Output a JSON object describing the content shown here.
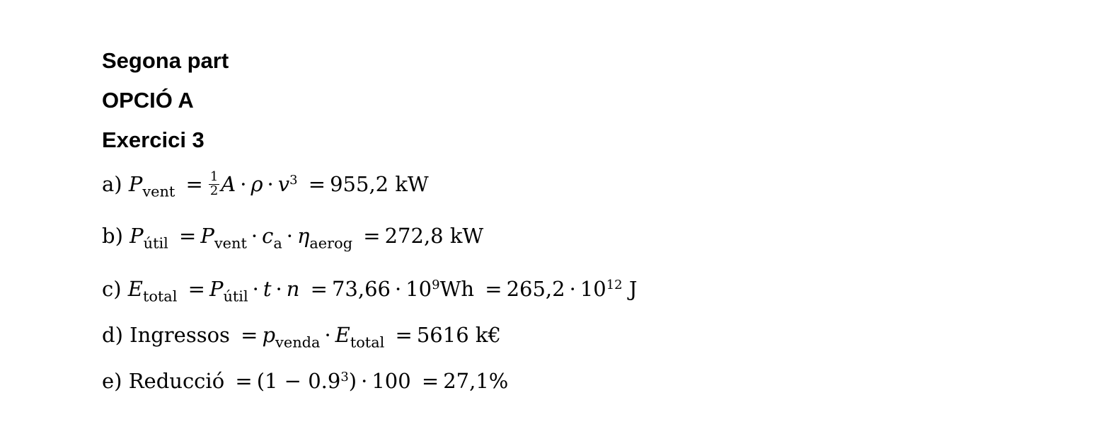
{
  "headings": {
    "part": "Segona part",
    "option": "OPCIÓ A",
    "exercise": "Exercici 3"
  },
  "equations": {
    "a": {
      "label": "a)",
      "p": "P",
      "sub_vent": "vent",
      "eq": "=",
      "frac_num": "1",
      "frac_den": "2",
      "A": "A",
      "rho": "ρ",
      "v": "v",
      "exp3": "3",
      "result": "955,2 kW"
    },
    "b": {
      "label": "b)",
      "p": "P",
      "sub_util": "útil",
      "eq": "=",
      "sub_vent": "vent",
      "c": "c",
      "sub_a": "a",
      "eta": "η",
      "sub_aerog": "aerog",
      "result": "272,8 kW"
    },
    "c": {
      "label": "c)",
      "e": "E",
      "sub_total": "total",
      "eq": "=",
      "p": "P",
      "sub_util": "útil",
      "t": "t",
      "n": "n",
      "val1": "73,66",
      "ten": "10",
      "exp9": "9",
      "unit1": "Wh",
      "val2": "265,2",
      "exp12": "12",
      "unit2": "J"
    },
    "d": {
      "label": "d)",
      "word": "Ingressos",
      "eq": "=",
      "p": "p",
      "sub_venda": "venda",
      "e": "E",
      "sub_total": "total",
      "result": "5616 k€"
    },
    "e": {
      "label": "e)",
      "word": "Reducció",
      "eq": "=",
      "paren_open": "(1 − 0.9",
      "exp3": "3",
      "paren_close": ")",
      "hundred": "100",
      "result": "27,1%"
    }
  }
}
